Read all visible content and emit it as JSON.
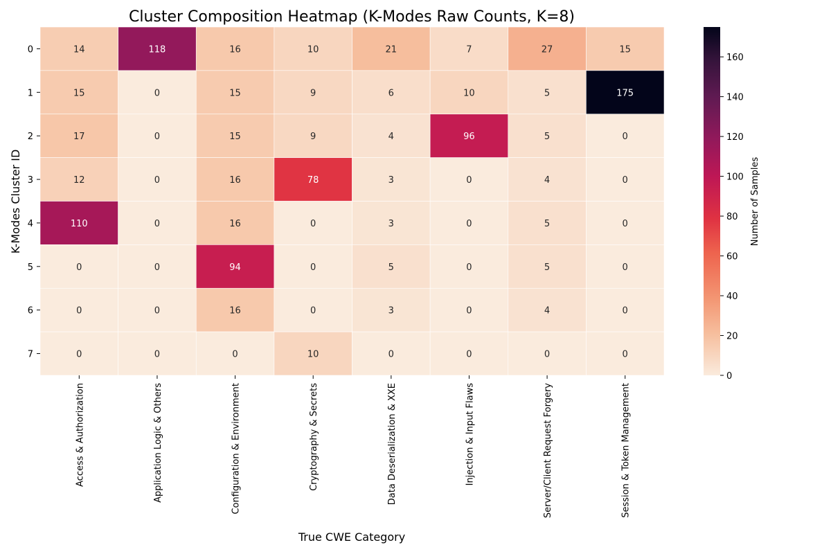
{
  "chart_data": {
    "type": "heatmap",
    "title": "Cluster Composition Heatmap (K-Modes Raw Counts, K=8)",
    "xlabel": "True CWE Category",
    "ylabel": "K-Modes Cluster ID",
    "x_categories": [
      "Access & Authorization",
      "Application Logic & Others",
      "Configuration & Environment",
      "Cryptography & Secrets",
      "Data Deserialization & XXE",
      "Injection & Input Flaws",
      "Server/Client Request Forgery",
      "Session & Token Management"
    ],
    "y_categories": [
      "0",
      "1",
      "2",
      "3",
      "4",
      "5",
      "6",
      "7"
    ],
    "values": [
      [
        14,
        118,
        16,
        10,
        21,
        7,
        27,
        15
      ],
      [
        15,
        0,
        15,
        9,
        6,
        10,
        5,
        175
      ],
      [
        17,
        0,
        15,
        9,
        4,
        96,
        5,
        0
      ],
      [
        12,
        0,
        16,
        78,
        3,
        0,
        4,
        0
      ],
      [
        110,
        0,
        16,
        0,
        3,
        0,
        5,
        0
      ],
      [
        0,
        0,
        94,
        0,
        5,
        0,
        5,
        0
      ],
      [
        0,
        0,
        16,
        0,
        3,
        0,
        4,
        0
      ],
      [
        0,
        0,
        0,
        10,
        0,
        0,
        0,
        0
      ]
    ],
    "colorbar": {
      "label": "Number of Samples",
      "min": 0,
      "max": 175,
      "ticks": [
        0,
        20,
        40,
        60,
        80,
        100,
        120,
        140,
        160
      ]
    },
    "colormap": "rocket_r",
    "grid": false
  }
}
